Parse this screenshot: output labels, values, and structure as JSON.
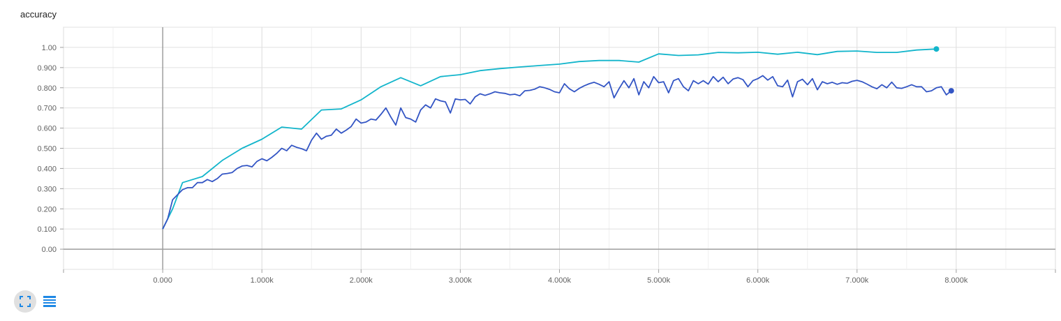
{
  "title": "accuracy",
  "chart_data": {
    "type": "line",
    "title": "accuracy",
    "xlabel": "",
    "ylabel": "",
    "xlim": [
      -1000,
      9000
    ],
    "ylim": [
      -0.1,
      1.1
    ],
    "grid": true,
    "x_ticks": [
      0,
      1000,
      2000,
      3000,
      4000,
      5000,
      6000,
      7000,
      8000
    ],
    "x_tick_labels": [
      "0.000",
      "1.000k",
      "2.000k",
      "3.000k",
      "4.000k",
      "5.000k",
      "6.000k",
      "7.000k",
      "8.000k"
    ],
    "y_ticks": [
      0,
      0.1,
      0.2,
      0.3,
      0.4,
      0.5,
      0.6,
      0.7,
      0.8,
      0.9,
      1.0
    ],
    "y_tick_labels": [
      "0.00",
      "0.100",
      "0.200",
      "0.300",
      "0.400",
      "0.500",
      "0.600",
      "0.700",
      "0.800",
      "0.900",
      "1.00"
    ],
    "series": [
      {
        "color": "#12b5cb",
        "x": [
          0,
          100,
          200,
          400,
          600,
          800,
          1000,
          1200,
          1400,
          1600,
          1800,
          2000,
          2200,
          2400,
          2600,
          2800,
          3000,
          3200,
          3400,
          3600,
          3800,
          4000,
          4200,
          4400,
          4600,
          4800,
          5000,
          5200,
          5400,
          5600,
          5800,
          6000,
          6200,
          6400,
          6600,
          6800,
          7000,
          7200,
          7400,
          7600,
          7800
        ],
        "y": [
          0.1,
          0.2,
          0.33,
          0.36,
          0.44,
          0.5,
          0.545,
          0.605,
          0.595,
          0.69,
          0.695,
          0.74,
          0.805,
          0.85,
          0.81,
          0.855,
          0.865,
          0.885,
          0.895,
          0.903,
          0.91,
          0.917,
          0.93,
          0.935,
          0.935,
          0.927,
          0.968,
          0.96,
          0.963,
          0.975,
          0.973,
          0.976,
          0.966,
          0.976,
          0.964,
          0.98,
          0.982,
          0.975,
          0.975,
          0.987,
          0.992
        ]
      },
      {
        "color": "#3355c4",
        "x": [
          0,
          50,
          100,
          150,
          200,
          250,
          300,
          350,
          400,
          450,
          500,
          550,
          600,
          650,
          700,
          750,
          800,
          850,
          900,
          950,
          1000,
          1050,
          1100,
          1150,
          1200,
          1250,
          1300,
          1350,
          1400,
          1450,
          1500,
          1550,
          1600,
          1650,
          1700,
          1750,
          1800,
          1850,
          1900,
          1950,
          2000,
          2050,
          2100,
          2150,
          2200,
          2250,
          2300,
          2350,
          2400,
          2450,
          2500,
          2550,
          2600,
          2650,
          2700,
          2750,
          2800,
          2850,
          2900,
          2950,
          3000,
          3050,
          3100,
          3150,
          3200,
          3250,
          3300,
          3350,
          3400,
          3450,
          3500,
          3550,
          3600,
          3650,
          3700,
          3750,
          3800,
          3850,
          3900,
          3950,
          4000,
          4050,
          4100,
          4150,
          4200,
          4250,
          4300,
          4350,
          4400,
          4450,
          4500,
          4550,
          4600,
          4650,
          4700,
          4750,
          4800,
          4850,
          4900,
          4950,
          5000,
          5050,
          5100,
          5150,
          5200,
          5250,
          5300,
          5350,
          5400,
          5450,
          5500,
          5550,
          5600,
          5650,
          5700,
          5750,
          5800,
          5850,
          5900,
          5950,
          6000,
          6050,
          6100,
          6150,
          6200,
          6250,
          6300,
          6350,
          6400,
          6450,
          6500,
          6550,
          6600,
          6650,
          6700,
          6750,
          6800,
          6850,
          6900,
          6950,
          7000,
          7050,
          7100,
          7150,
          7200,
          7250,
          7300,
          7350,
          7400,
          7450,
          7500,
          7550,
          7600,
          7650,
          7700,
          7750,
          7800,
          7850,
          7900,
          7950
        ],
        "y": [
          0.1,
          0.15,
          0.245,
          0.27,
          0.295,
          0.305,
          0.305,
          0.33,
          0.33,
          0.345,
          0.335,
          0.35,
          0.372,
          0.375,
          0.38,
          0.4,
          0.412,
          0.415,
          0.408,
          0.435,
          0.448,
          0.438,
          0.455,
          0.475,
          0.5,
          0.488,
          0.515,
          0.505,
          0.498,
          0.488,
          0.54,
          0.575,
          0.545,
          0.56,
          0.565,
          0.595,
          0.575,
          0.59,
          0.608,
          0.645,
          0.625,
          0.63,
          0.645,
          0.64,
          0.668,
          0.7,
          0.655,
          0.615,
          0.7,
          0.652,
          0.645,
          0.63,
          0.69,
          0.715,
          0.7,
          0.745,
          0.735,
          0.73,
          0.675,
          0.745,
          0.74,
          0.742,
          0.72,
          0.755,
          0.77,
          0.762,
          0.77,
          0.78,
          0.775,
          0.772,
          0.765,
          0.768,
          0.76,
          0.785,
          0.787,
          0.793,
          0.805,
          0.8,
          0.792,
          0.78,
          0.775,
          0.82,
          0.795,
          0.78,
          0.797,
          0.81,
          0.82,
          0.827,
          0.817,
          0.805,
          0.83,
          0.75,
          0.795,
          0.835,
          0.8,
          0.845,
          0.765,
          0.83,
          0.8,
          0.855,
          0.825,
          0.83,
          0.775,
          0.835,
          0.845,
          0.805,
          0.785,
          0.835,
          0.82,
          0.835,
          0.818,
          0.855,
          0.83,
          0.852,
          0.82,
          0.843,
          0.85,
          0.84,
          0.805,
          0.835,
          0.845,
          0.86,
          0.838,
          0.855,
          0.81,
          0.805,
          0.838,
          0.755,
          0.83,
          0.842,
          0.815,
          0.845,
          0.79,
          0.83,
          0.82,
          0.827,
          0.817,
          0.825,
          0.822,
          0.832,
          0.837,
          0.83,
          0.818,
          0.805,
          0.795,
          0.815,
          0.8,
          0.828,
          0.8,
          0.797,
          0.805,
          0.815,
          0.805,
          0.805,
          0.78,
          0.785,
          0.8,
          0.805,
          0.765,
          0.785
        ]
      }
    ]
  },
  "controls": {
    "expand_icon": "fullscreen-icon",
    "list_icon": "list-icon"
  }
}
